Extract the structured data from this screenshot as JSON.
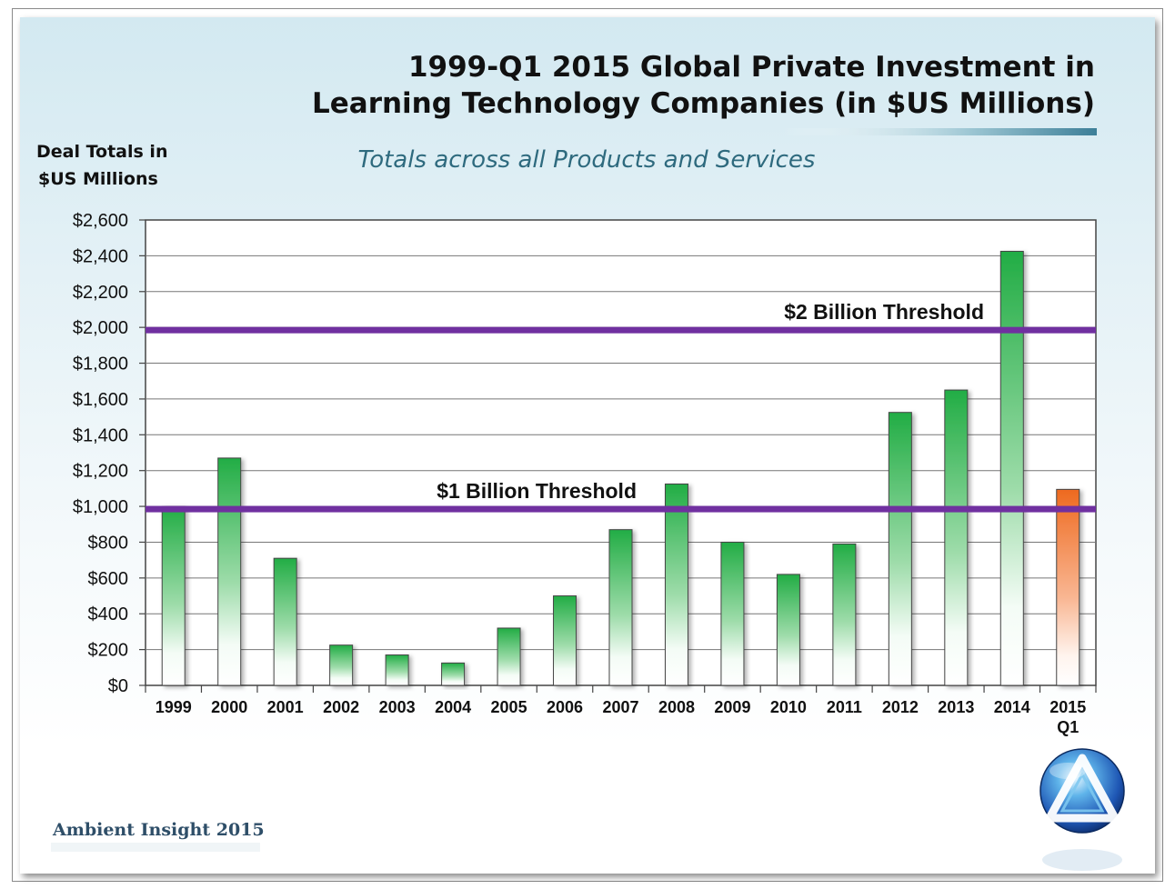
{
  "chart_data": {
    "type": "bar",
    "title": [
      "1999-Q1 2015 Global Private Investment in",
      "Learning Technology Companies (in $US Millions)"
    ],
    "subtitle": "Totals across all Products and Services",
    "ylabel": [
      "Deal Totals in",
      "$US Millions"
    ],
    "xlabel": "",
    "ylim": [
      0,
      2600
    ],
    "yticks": [
      "$0",
      "$200",
      "$400",
      "$600",
      "$800",
      "$1,000",
      "$1,200",
      "$1,400",
      "$1,600",
      "$1,800",
      "$2,000",
      "$2,200",
      "$2,400",
      "$2,600"
    ],
    "categories": [
      [
        "1999"
      ],
      [
        "2000"
      ],
      [
        "2001"
      ],
      [
        "2002"
      ],
      [
        "2003"
      ],
      [
        "2004"
      ],
      [
        "2005"
      ],
      [
        "2006"
      ],
      [
        "2007"
      ],
      [
        "2008"
      ],
      [
        "2009"
      ],
      [
        "2010"
      ],
      [
        "2011"
      ],
      [
        "2012"
      ],
      [
        "2013"
      ],
      [
        "2014"
      ],
      [
        "2015",
        "Q1"
      ]
    ],
    "values": [
      1000,
      1270,
      710,
      225,
      170,
      125,
      320,
      500,
      870,
      1125,
      800,
      620,
      790,
      1525,
      1650,
      2425,
      1095
    ],
    "highlight_index": 16,
    "bar_colors": {
      "normal": "#2ab34a",
      "highlight": "#f06a1e"
    },
    "reference_lines": [
      {
        "value": 2000,
        "label": "$2 Billion  Threshold",
        "color": "#7030a0"
      },
      {
        "value": 1000,
        "label": "$1 Billion  Threshold",
        "color": "#7030a0"
      }
    ],
    "grid": true
  },
  "footer": {
    "credit": "Ambient Insight  2015",
    "logo": "ambient-insight-triangle-logo"
  }
}
